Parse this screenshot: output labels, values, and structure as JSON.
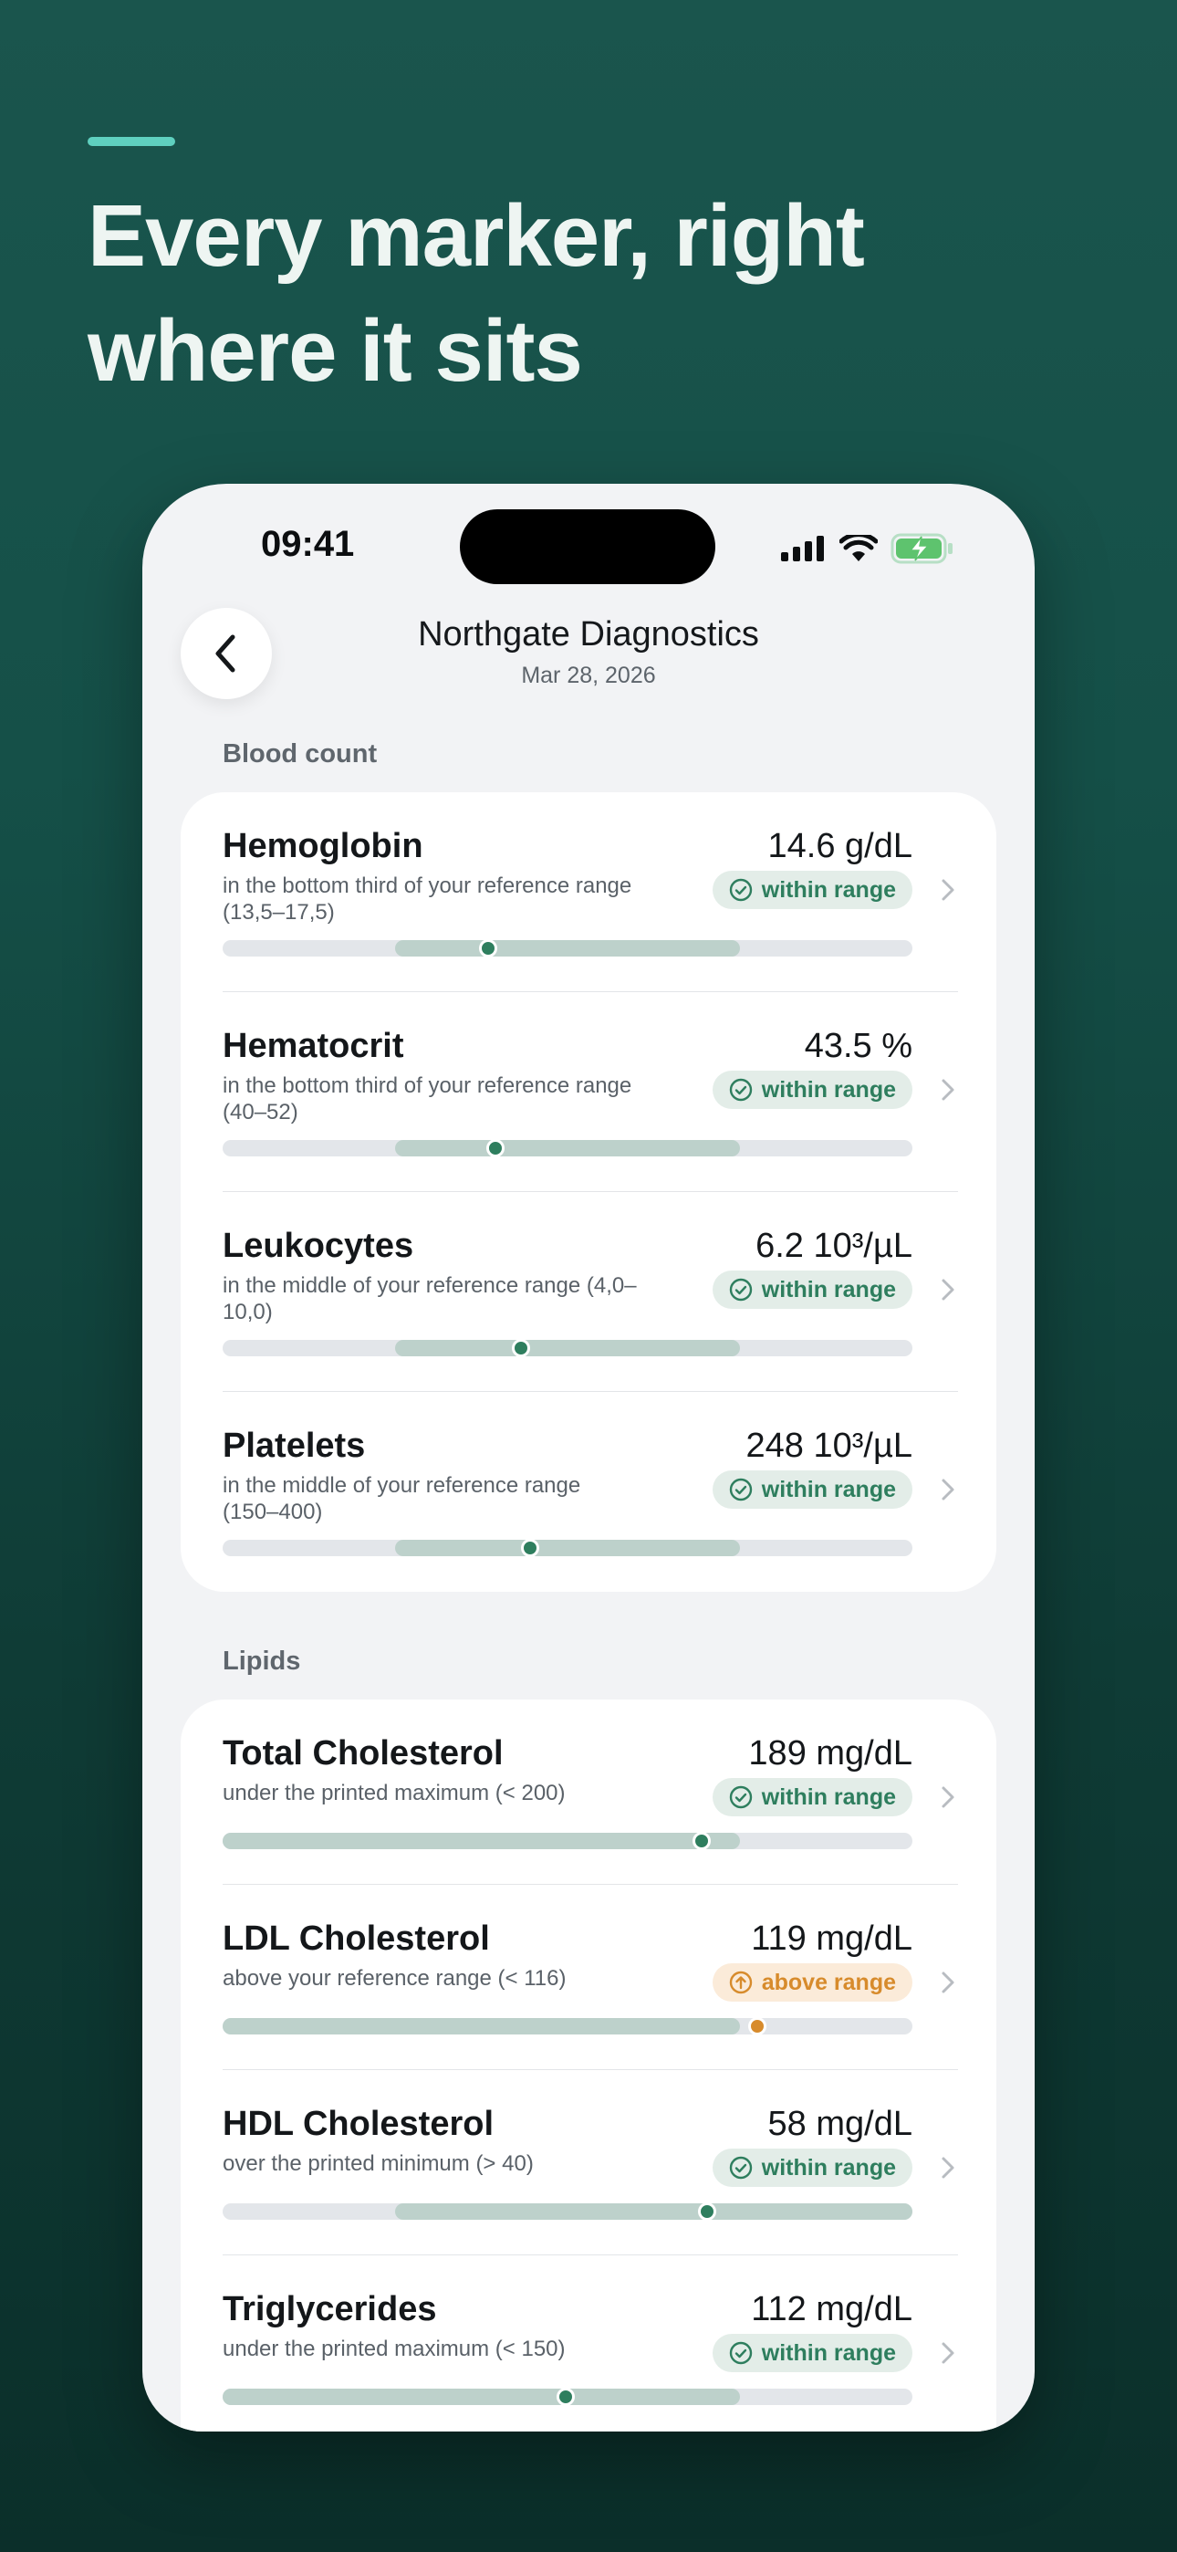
{
  "headline": "Every marker, right where it sits",
  "status_bar": {
    "time": "09:41"
  },
  "nav": {
    "title": "Northgate Diagnostics",
    "date": "Mar 28, 2026"
  },
  "colors": {
    "within": "#2e7e5e",
    "above": "#d78b2c",
    "reference_band": "#bdd1cb",
    "track": "#e3e6ea"
  },
  "sections": [
    {
      "label": "Blood count",
      "rows": [
        {
          "name": "Hemoglobin",
          "desc": "in the bottom third of your reference range (13,5–17,5)",
          "value": "14.6 g/dL",
          "status": "within range",
          "level": "ok",
          "band": [
            0.25,
            0.75
          ],
          "marker": 0.385,
          "icon": "check-circle-icon"
        },
        {
          "name": "Hematocrit",
          "desc": "in the bottom third of your reference range (40–52)",
          "value": "43.5 %",
          "status": "within range",
          "level": "ok",
          "band": [
            0.25,
            0.75
          ],
          "marker": 0.395,
          "icon": "check-circle-icon"
        },
        {
          "name": "Leukocytes",
          "desc": "in the middle of your reference range (4,0–10,0)",
          "value": "6.2 10³/µL",
          "status": "within range",
          "level": "ok",
          "band": [
            0.25,
            0.75
          ],
          "marker": 0.433,
          "icon": "check-circle-icon"
        },
        {
          "name": "Platelets",
          "desc": "in the middle of your reference range (150–400)",
          "value": "248 10³/µL",
          "status": "within range",
          "level": "ok",
          "band": [
            0.25,
            0.75
          ],
          "marker": 0.446,
          "icon": "check-circle-icon"
        }
      ]
    },
    {
      "label": "Lipids",
      "rows": [
        {
          "name": "Total Cholesterol",
          "desc": "under the printed maximum (< 200)",
          "value": "189 mg/dL",
          "status": "within range",
          "level": "ok",
          "band": [
            0.0,
            0.75
          ],
          "marker": 0.695,
          "icon": "check-circle-icon"
        },
        {
          "name": "LDL Cholesterol",
          "desc": "above your reference range (< 116)",
          "value": "119 mg/dL",
          "status": "above range",
          "level": "high",
          "band": [
            0.0,
            0.75
          ],
          "marker": 0.775,
          "icon": "arrow-up-circle-icon"
        },
        {
          "name": "HDL Cholesterol",
          "desc": "over the printed minimum (> 40)",
          "value": "58 mg/dL",
          "status": "within range",
          "level": "ok",
          "band": [
            0.25,
            1.0
          ],
          "marker": 0.703,
          "icon": "check-circle-icon"
        },
        {
          "name": "Triglycerides",
          "desc": "under the printed maximum (< 150)",
          "value": "112 mg/dL",
          "status": "within range",
          "level": "ok",
          "band": [
            0.0,
            0.75
          ],
          "marker": 0.497,
          "icon": "check-circle-icon"
        }
      ]
    }
  ]
}
